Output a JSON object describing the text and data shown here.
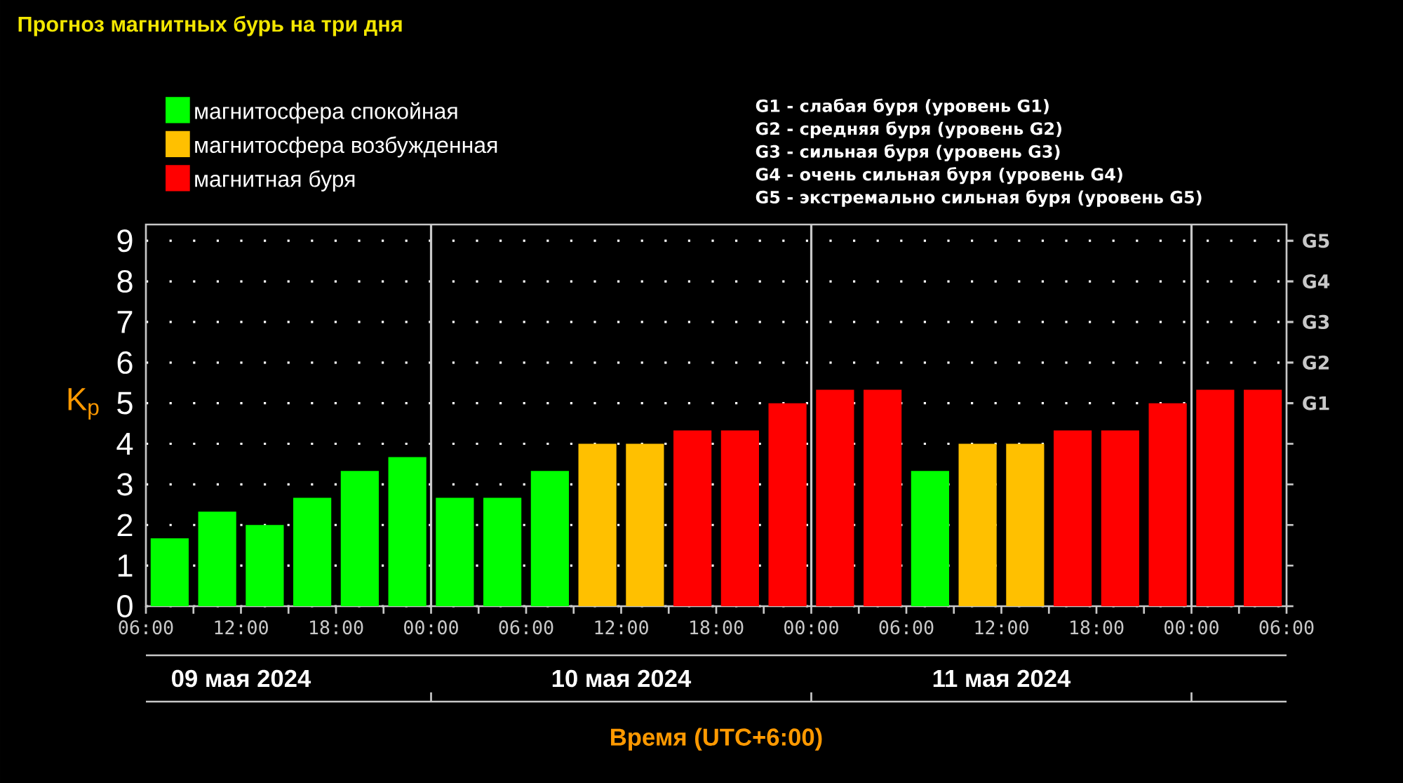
{
  "chart_data": {
    "type": "bar",
    "title": "Прогноз магнитных бурь на три дня",
    "ylabel": "K$_{p}$",
    "xlabel": "Время (UTC+6:00)",
    "annotations": [
      "G1 - слабая буря (уровень G1)",
      "G2 - средняя буря (уровень G2)",
      "G3 - сильная буря (уровень G3)",
      "G4 - очень сильная буря (уровень G4)",
      "G5 - экстремально сильная буря (уровень G5)",
      "09 мая 2024",
      "10 мая 2024",
      "11 мая 2024"
    ],
    "x": [
      "2024-05-09T07:30",
      "2024-05-09T10:30",
      "2024-05-09T13:30",
      "2024-05-09T16:30",
      "2024-05-09T19:30",
      "2024-05-09T22:30",
      "2024-05-10T01:30",
      "2024-05-10T04:30",
      "2024-05-10T07:30",
      "2024-05-10T10:30",
      "2024-05-10T13:30",
      "2024-05-10T16:30",
      "2024-05-10T19:30",
      "2024-05-10T22:30",
      "2024-05-11T01:30",
      "2024-05-11T04:30",
      "2024-05-11T07:30",
      "2024-05-11T10:30",
      "2024-05-11T13:30",
      "2024-05-11T16:30",
      "2024-05-11T19:30",
      "2024-05-11T22:30",
      "2024-05-12T01:30",
      "2024-05-12T04:30"
    ],
    "series": [
      {
        "name": "магнитосфера спокойная",
        "color": "#00ff00",
        "values": [
          1.67,
          2.33,
          2.0,
          2.67,
          3.33,
          3.67,
          2.67,
          2.67,
          3.33,
          null,
          null,
          null,
          null,
          null,
          null,
          null,
          3.33,
          null,
          null,
          null,
          null,
          null,
          null,
          null
        ]
      },
      {
        "name": "магнитосфера возбужденная",
        "color": "#ffc000",
        "values": [
          null,
          null,
          null,
          null,
          null,
          null,
          null,
          null,
          null,
          4.0,
          4.0,
          null,
          null,
          null,
          null,
          null,
          null,
          4.0,
          4.0,
          null,
          null,
          null,
          null,
          null
        ]
      },
      {
        "name": "магнитная буря",
        "color": "#ff0000",
        "values": [
          null,
          null,
          null,
          null,
          null,
          null,
          null,
          null,
          null,
          null,
          null,
          4.33,
          4.33,
          5.0,
          5.33,
          5.33,
          null,
          null,
          null,
          4.33,
          4.33,
          5.0,
          5.33,
          5.33
        ]
      }
    ],
    "xlim": [
      "2024-05-09T06:00",
      "2024-05-12T06:00"
    ],
    "xticks": [
      {
        "value": "2024-05-09T06:00",
        "label": "06:00"
      },
      {
        "value": "2024-05-09T09:00",
        "label": null
      },
      {
        "value": "2024-05-09T12:00",
        "label": "12:00"
      },
      {
        "value": "2024-05-09T15:00",
        "label": null
      },
      {
        "value": "2024-05-09T18:00",
        "label": "18:00"
      },
      {
        "value": "2024-05-09T21:00",
        "label": null
      },
      {
        "value": "2024-05-10T00:00",
        "label": "00:00"
      },
      {
        "value": "2024-05-10T03:00",
        "label": null
      },
      {
        "value": "2024-05-10T06:00",
        "label": "06:00"
      },
      {
        "value": "2024-05-10T09:00",
        "label": null
      },
      {
        "value": "2024-05-10T12:00",
        "label": "12:00"
      },
      {
        "value": "2024-05-10T15:00",
        "label": null
      },
      {
        "value": "2024-05-10T18:00",
        "label": "18:00"
      },
      {
        "value": "2024-05-10T21:00",
        "label": null
      },
      {
        "value": "2024-05-11T00:00",
        "label": "00:00"
      },
      {
        "value": "2024-05-11T03:00",
        "label": null
      },
      {
        "value": "2024-05-11T06:00",
        "label": "06:00"
      },
      {
        "value": "2024-05-11T09:00",
        "label": null
      },
      {
        "value": "2024-05-11T12:00",
        "label": "12:00"
      },
      {
        "value": "2024-05-11T15:00",
        "label": null
      },
      {
        "value": "2024-05-11T18:00",
        "label": "18:00"
      },
      {
        "value": "2024-05-11T21:00",
        "label": null
      },
      {
        "value": "2024-05-12T00:00",
        "label": "00:00"
      },
      {
        "value": "2024-05-12T03:00",
        "label": null
      },
      {
        "value": "2024-05-12T06:00",
        "label": "06:00"
      }
    ],
    "ylim": [
      0,
      9.4
    ],
    "yticks": [
      0,
      1,
      2,
      3,
      4,
      5,
      6,
      7,
      8,
      9
    ],
    "ref_lines": [
      {
        "axis": "x",
        "value": "2024-05-10T00:00",
        "color": "#c8c8c8"
      },
      {
        "axis": "x",
        "value": "2024-05-11T00:00",
        "color": "#c8c8c8"
      },
      {
        "axis": "x",
        "value": "2024-05-12T00:00",
        "color": "#c8c8c8"
      },
      {
        "axis": "y",
        "value": 5,
        "label": "G1",
        "color": "#c8c8c8"
      },
      {
        "axis": "y",
        "value": 6,
        "label": "G2",
        "color": "#c8c8c8"
      },
      {
        "axis": "y",
        "value": 7,
        "label": "G3",
        "color": "#c8c8c8"
      },
      {
        "axis": "y",
        "value": 8,
        "label": "G4",
        "color": "#c8c8c8"
      },
      {
        "axis": "y",
        "value": 9,
        "label": "G5",
        "color": "#c8c8c8"
      }
    ],
    "grid": "y",
    "legend": "top left"
  }
}
